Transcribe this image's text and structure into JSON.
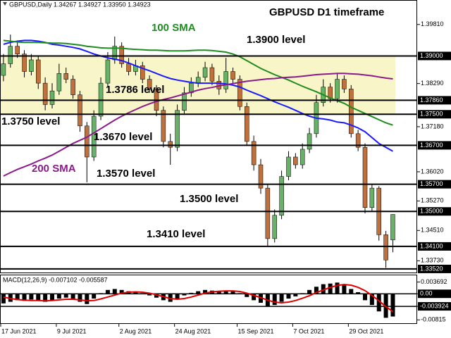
{
  "chart_data": [
    {
      "type": "candlestick",
      "title": "GBPUSD D1 timeframe",
      "header": "GBPUSD,Daily 1.34267 1.34927 1.33950 1.34923",
      "up_color": "#66b266",
      "down_color": "#c0703c",
      "open": [
        1.385,
        1.388,
        1.3925,
        1.3905,
        1.386,
        1.389,
        1.383,
        1.3775,
        1.381,
        1.3855,
        1.384,
        1.38,
        1.372,
        1.364,
        1.3745,
        1.383,
        1.389,
        1.3925,
        1.388,
        1.386,
        1.3875,
        1.384,
        1.3815,
        1.376,
        1.368,
        1.3665,
        1.376,
        1.3805,
        1.383,
        1.3845,
        1.387,
        1.3835,
        1.3815,
        1.386,
        1.384,
        1.377,
        1.368,
        1.362,
        1.356,
        1.343,
        1.349,
        1.359,
        1.364,
        1.362,
        1.366,
        1.37,
        1.378,
        1.382,
        1.379,
        1.384,
        1.3815,
        1.37,
        1.3665,
        1.351,
        1.356,
        1.344,
        1.34267
      ],
      "high": [
        1.3905,
        1.3955,
        1.394,
        1.3915,
        1.3905,
        1.39,
        1.3845,
        1.383,
        1.388,
        1.387,
        1.385,
        1.381,
        1.373,
        1.376,
        1.3845,
        1.391,
        1.395,
        1.3935,
        1.3895,
        1.389,
        1.3885,
        1.385,
        1.3825,
        1.377,
        1.37,
        1.3775,
        1.382,
        1.3845,
        1.386,
        1.3885,
        1.388,
        1.385,
        1.3895,
        1.387,
        1.385,
        1.378,
        1.3695,
        1.3635,
        1.357,
        1.3505,
        1.3605,
        1.3655,
        1.365,
        1.3675,
        1.3715,
        1.38,
        1.384,
        1.383,
        1.3855,
        1.385,
        1.3825,
        1.371,
        1.3675,
        1.357,
        1.3565,
        1.345,
        1.34927
      ],
      "low": [
        1.3835,
        1.387,
        1.3895,
        1.3845,
        1.385,
        1.3815,
        1.376,
        1.3765,
        1.38,
        1.383,
        1.379,
        1.3705,
        1.3575,
        1.363,
        1.3735,
        1.382,
        1.388,
        1.387,
        1.385,
        1.385,
        1.383,
        1.3805,
        1.3745,
        1.3665,
        1.362,
        1.3655,
        1.375,
        1.3795,
        1.382,
        1.3835,
        1.3825,
        1.38,
        1.3805,
        1.383,
        1.376,
        1.367,
        1.3605,
        1.3545,
        1.341,
        1.342,
        1.348,
        1.358,
        1.361,
        1.361,
        1.365,
        1.369,
        1.377,
        1.378,
        1.378,
        1.3805,
        1.369,
        1.3655,
        1.3495,
        1.35,
        1.3425,
        1.3355,
        1.3395
      ],
      "close": [
        1.388,
        1.3925,
        1.3905,
        1.386,
        1.389,
        1.383,
        1.3775,
        1.381,
        1.3855,
        1.384,
        1.38,
        1.372,
        1.364,
        1.3745,
        1.383,
        1.389,
        1.3925,
        1.388,
        1.386,
        1.3875,
        1.384,
        1.3815,
        1.376,
        1.368,
        1.3665,
        1.376,
        1.3805,
        1.383,
        1.3845,
        1.387,
        1.3835,
        1.3815,
        1.386,
        1.384,
        1.377,
        1.368,
        1.362,
        1.356,
        1.343,
        1.349,
        1.359,
        1.364,
        1.362,
        1.366,
        1.37,
        1.378,
        1.382,
        1.379,
        1.384,
        1.3815,
        1.37,
        1.3665,
        1.351,
        1.356,
        1.344,
        1.3375,
        1.34923
      ],
      "series": [
        {
          "color": "#1a1aff",
          "values": [
            1.393,
            1.3935,
            1.3938,
            1.394,
            1.394,
            1.3938,
            1.3935,
            1.393,
            1.3928,
            1.3925,
            1.3922,
            1.3918,
            1.3912,
            1.3905,
            1.39,
            1.3895,
            1.3892,
            1.3888,
            1.3882,
            1.3875,
            1.3868,
            1.3862,
            1.3855,
            1.3848,
            1.3842,
            1.3838,
            1.3835,
            1.3832,
            1.383,
            1.383,
            1.383,
            1.383,
            1.3828,
            1.3825,
            1.382,
            1.3812,
            1.3805,
            1.3798,
            1.379,
            1.3782,
            1.3775,
            1.3768,
            1.376,
            1.3752,
            1.3745,
            1.374,
            1.3738,
            1.3735,
            1.373,
            1.3728,
            1.3722,
            1.3715,
            1.3705,
            1.369,
            1.3675,
            1.3665,
            1.3655
          ]
        },
        {
          "name": "100 SMA",
          "color": "#1e8c1e",
          "values": [
            1.394,
            1.3938,
            1.3936,
            1.3935,
            1.3935,
            1.3935,
            1.3934,
            1.3933,
            1.3933,
            1.3932,
            1.393,
            1.3928,
            1.3925,
            1.3923,
            1.3921,
            1.392,
            1.392,
            1.392,
            1.3918,
            1.3917,
            1.3916,
            1.3915,
            1.3915,
            1.3914,
            1.3913,
            1.3913,
            1.3913,
            1.3914,
            1.3915,
            1.3915,
            1.3914,
            1.3912,
            1.391,
            1.3905,
            1.3898,
            1.3888,
            1.3878,
            1.3868,
            1.386,
            1.3852,
            1.3845,
            1.3838,
            1.383,
            1.3822,
            1.3815,
            1.3808,
            1.38,
            1.3792,
            1.3785,
            1.3778,
            1.3768,
            1.376,
            1.3752,
            1.3744,
            1.3736,
            1.3728,
            1.3722
          ]
        },
        {
          "name": "200 SMA",
          "color": "#8b1a8b",
          "values": [
            1.3591,
            1.36,
            1.3608,
            1.3615,
            1.3622,
            1.363,
            1.3637,
            1.3645,
            1.3655,
            1.3665,
            1.3675,
            1.3683,
            1.3691,
            1.3702,
            1.3713,
            1.3724,
            1.3735,
            1.3745,
            1.3754,
            1.3762,
            1.377,
            1.3777,
            1.3783,
            1.3788,
            1.3792,
            1.3797,
            1.3802,
            1.3807,
            1.3812,
            1.3816,
            1.3819,
            1.3823,
            1.3826,
            1.3829,
            1.3832,
            1.3835,
            1.3837,
            1.3839,
            1.3841,
            1.3842,
            1.3844,
            1.3845,
            1.3846,
            1.3848,
            1.385,
            1.3852,
            1.3853,
            1.3854,
            1.3855,
            1.3855,
            1.3854,
            1.3853,
            1.3851,
            1.3849,
            1.3846,
            1.3843,
            1.3841
          ]
        }
      ],
      "zone": [
        1.375,
        1.39
      ],
      "zone_color": "#f8f5c8",
      "levels": [
        {
          "value": 1.39,
          "label": "1.39000",
          "annotation": "1.3900 level"
        },
        {
          "value": 1.3786,
          "label": "1.37860",
          "annotation": "1.3786 level"
        },
        {
          "value": 1.375,
          "label": "1.37500",
          "annotation": "1.3750 level"
        },
        {
          "value": 1.367,
          "label": "1.36700",
          "annotation": "1.3670 level"
        },
        {
          "value": 1.357,
          "label": "1.35700",
          "annotation": "1.3570 level"
        },
        {
          "value": 1.35,
          "label": "1.35000",
          "annotation": "1.3500 level"
        },
        {
          "value": 1.341,
          "label": "1.34100",
          "annotation": "1.3410 level"
        },
        {
          "value": 1.3352,
          "label": "1.33520"
        }
      ],
      "ylim": [
        1.3341,
        1.4044
      ],
      "yticks": [
        {
          "value": 1.3981,
          "label": "1.39810"
        },
        {
          "value": 1.3829,
          "label": "1.38290"
        },
        {
          "value": 1.3718,
          "label": "1.37180"
        },
        {
          "value": 1.3602,
          "label": "1.36020"
        },
        {
          "value": 1.3527,
          "label": "1.35270"
        },
        {
          "value": 1.3451,
          "label": "1.34510"
        },
        {
          "value": 1.3373,
          "label": "1.33730"
        }
      ]
    },
    {
      "type": "bar",
      "label": "MACD(12,26,9) -0.007102 -0.005587",
      "categories": [
        "17 Jun 2021",
        null,
        null,
        null,
        null,
        null,
        null,
        null,
        "9 Jul 2021",
        null,
        null,
        null,
        null,
        null,
        null,
        null,
        null,
        "2 Aug 2021",
        null,
        null,
        null,
        null,
        null,
        null,
        null,
        "24 Aug 2021",
        null,
        null,
        null,
        null,
        null,
        null,
        null,
        null,
        "15 Sep 2021",
        null,
        null,
        null,
        null,
        null,
        null,
        null,
        "7 Oct 2021",
        null,
        null,
        null,
        null,
        null,
        null,
        null,
        "29 Oct 2021",
        null,
        null,
        null,
        null,
        null,
        null
      ],
      "series": [
        {
          "color": "#000000",
          "values": [
            -0.003,
            -0.0025,
            -0.002,
            -0.0022,
            -0.0018,
            -0.002,
            -0.0025,
            -0.002,
            -0.0015,
            -0.0012,
            -0.0018,
            -0.0025,
            -0.0032,
            -0.0015,
            0.0002,
            0.0012,
            0.0015,
            0.0012,
            0.0008,
            0.0005,
            0.0002,
            -0.0005,
            -0.0012,
            -0.002,
            -0.0025,
            -0.0015,
            -0.0005,
            0.0003,
            0.0008,
            0.0012,
            0.001,
            0.0008,
            0.001,
            0.0008,
            0.0002,
            -0.001,
            -0.002,
            -0.0028,
            -0.004,
            -0.0035,
            -0.0025,
            -0.0015,
            -0.0008,
            0.0002,
            0.0012,
            0.0022,
            0.003,
            0.0032,
            0.0035,
            0.003,
            0.0015,
            0.0005,
            -0.002,
            -0.0035,
            -0.0055,
            -0.0075,
            -0.007102
          ]
        },
        {
          "type": "line",
          "color": "#e00000",
          "values": [
            -0.001,
            -0.0015,
            -0.0018,
            -0.002,
            -0.0021,
            -0.0021,
            -0.0022,
            -0.0021,
            -0.0019,
            -0.0017,
            -0.0017,
            -0.0019,
            -0.0022,
            -0.0021,
            -0.0016,
            -0.001,
            -0.0004,
            0.0002,
            0.0005,
            0.0006,
            0.0005,
            0.0002,
            -0.0003,
            -0.0009,
            -0.0015,
            -0.0017,
            -0.0015,
            -0.001,
            -0.0004,
            0.0002,
            0.0006,
            0.0008,
            0.0009,
            0.0009,
            0.0007,
            0.0002,
            -0.0005,
            -0.0012,
            -0.002,
            -0.0026,
            -0.0028,
            -0.0026,
            -0.0021,
            -0.0014,
            -0.0006,
            0.0004,
            0.0012,
            0.002,
            0.0026,
            0.0029,
            0.0027,
            0.002,
            0.001,
            -0.0005,
            -0.0022,
            -0.004,
            -0.005587
          ]
        }
      ],
      "ylim": [
        -0.00919,
        0.00577
      ],
      "yticks": [
        0.003692,
        {
          "value": 0,
          "label": "0.00",
          "highlight": true
        },
        {
          "value": -0.003924,
          "highlight": true
        },
        -0.00815
      ]
    }
  ]
}
